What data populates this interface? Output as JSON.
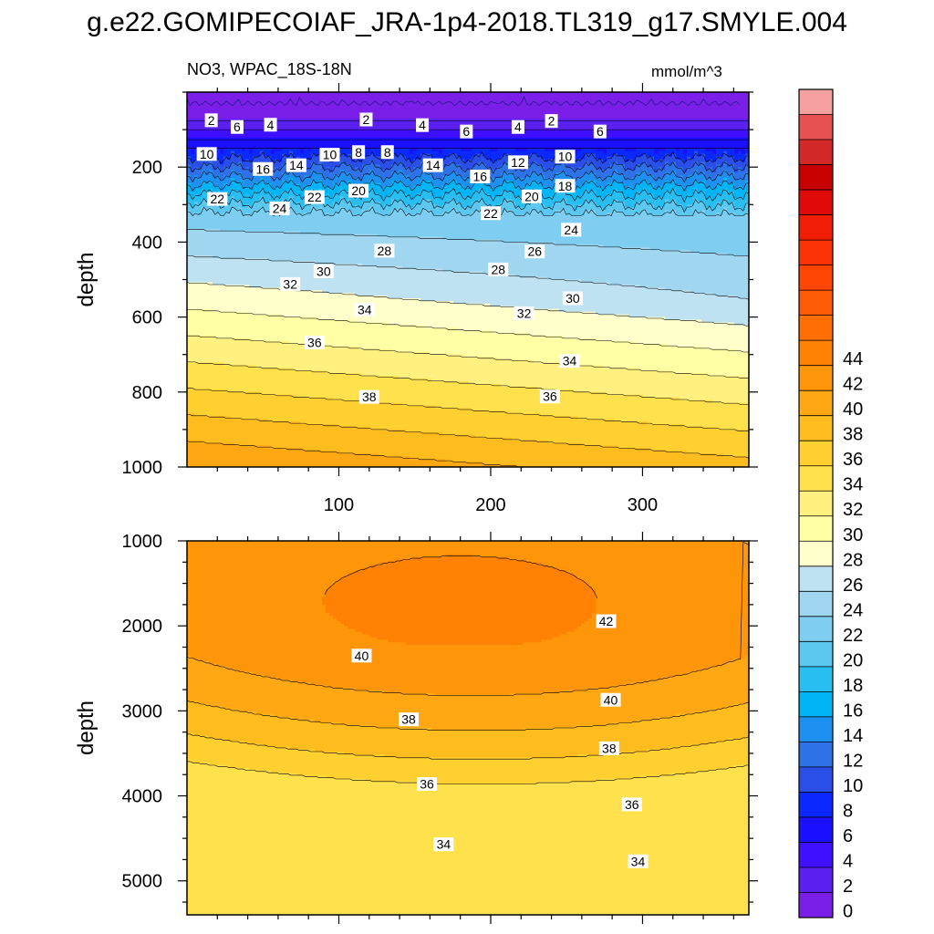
{
  "title": "g.e22.GOMIPECOIAF_JRA-1p4-2018.TL319_g17.SMYLE.004",
  "subtitle_left": "NO3, WPAC_18S-18N",
  "subtitle_right": "mmol/m^3",
  "colors": {
    "palette": [
      "#7a1fe8",
      "#5a20f0",
      "#3f10ff",
      "#1a0fff",
      "#0a28ff",
      "#2a4ee8",
      "#2f72e8",
      "#1e90f0",
      "#00b4f5",
      "#28bef2",
      "#5cc8f0",
      "#7fcef2",
      "#a0d6f0",
      "#bfe2f2",
      "#ffffcc",
      "#ffffa6",
      "#fff080",
      "#ffe14d",
      "#ffd030",
      "#ffbc1f",
      "#ffa814",
      "#ff960a",
      "#ff8205",
      "#ff6e05",
      "#ff5a05",
      "#ff4605",
      "#fa3205",
      "#f01e05",
      "#e00a0a",
      "#c80000",
      "#d22828",
      "#e65050",
      "#f5a0a0"
    ],
    "frame": "#000000"
  },
  "chart_data": [
    {
      "type": "contour",
      "panel": "upper",
      "xlabel": "",
      "ylabel": "depth",
      "xlim": [
        0,
        370
      ],
      "ylim": [
        1000,
        0
      ],
      "xticks": [
        100,
        200,
        300
      ],
      "yticks": [
        200,
        400,
        600,
        800,
        1000
      ],
      "contour_interval": 2,
      "contour_labels": [
        {
          "v": "2",
          "x": 16,
          "y": 75
        },
        {
          "v": "6",
          "x": 33,
          "y": 93
        },
        {
          "v": "4",
          "x": 55,
          "y": 87
        },
        {
          "v": "2",
          "x": 118,
          "y": 73
        },
        {
          "v": "4",
          "x": 155,
          "y": 88
        },
        {
          "v": "6",
          "x": 184,
          "y": 105
        },
        {
          "v": "4",
          "x": 218,
          "y": 93
        },
        {
          "v": "2",
          "x": 240,
          "y": 77
        },
        {
          "v": "6",
          "x": 272,
          "y": 105
        },
        {
          "v": "10",
          "x": 13,
          "y": 165
        },
        {
          "v": "16",
          "x": 50,
          "y": 205
        },
        {
          "v": "14",
          "x": 72,
          "y": 195
        },
        {
          "v": "10",
          "x": 94,
          "y": 167
        },
        {
          "v": "8",
          "x": 113,
          "y": 160
        },
        {
          "v": "8",
          "x": 132,
          "y": 160
        },
        {
          "v": "14",
          "x": 162,
          "y": 195
        },
        {
          "v": "16",
          "x": 193,
          "y": 225
        },
        {
          "v": "12",
          "x": 218,
          "y": 187
        },
        {
          "v": "10",
          "x": 249,
          "y": 172
        },
        {
          "v": "22",
          "x": 20,
          "y": 285
        },
        {
          "v": "24",
          "x": 61,
          "y": 310
        },
        {
          "v": "22",
          "x": 84,
          "y": 280
        },
        {
          "v": "20",
          "x": 113,
          "y": 263
        },
        {
          "v": "22",
          "x": 200,
          "y": 323
        },
        {
          "v": "20",
          "x": 227,
          "y": 278
        },
        {
          "v": "18",
          "x": 249,
          "y": 250
        },
        {
          "v": "24",
          "x": 253,
          "y": 367
        },
        {
          "v": "28",
          "x": 130,
          "y": 423
        },
        {
          "v": "26",
          "x": 229,
          "y": 425
        },
        {
          "v": "28",
          "x": 205,
          "y": 473
        },
        {
          "v": "30",
          "x": 90,
          "y": 478
        },
        {
          "v": "32",
          "x": 68,
          "y": 512
        },
        {
          "v": "30",
          "x": 254,
          "y": 550
        },
        {
          "v": "34",
          "x": 117,
          "y": 580
        },
        {
          "v": "32",
          "x": 222,
          "y": 590
        },
        {
          "v": "36",
          "x": 84,
          "y": 668
        },
        {
          "v": "34",
          "x": 252,
          "y": 717
        },
        {
          "v": "38",
          "x": 120,
          "y": 813
        },
        {
          "v": "36",
          "x": 239,
          "y": 812
        }
      ]
    },
    {
      "type": "contour",
      "panel": "lower",
      "xlabel": "",
      "ylabel": "depth",
      "xlim": [
        0,
        370
      ],
      "ylim": [
        5400,
        1000
      ],
      "xticks": [
        100,
        200,
        300
      ],
      "yticks": [
        1000,
        2000,
        3000,
        4000,
        5000
      ],
      "contour_interval": 2,
      "contour_labels": [
        {
          "v": "42",
          "x": 276,
          "y": 1945
        },
        {
          "v": "40",
          "x": 115,
          "y": 2350
        },
        {
          "v": "40",
          "x": 279,
          "y": 2870
        },
        {
          "v": "38",
          "x": 146,
          "y": 3100
        },
        {
          "v": "38",
          "x": 278,
          "y": 3440
        },
        {
          "v": "36",
          "x": 158,
          "y": 3860
        },
        {
          "v": "36",
          "x": 293,
          "y": 4100
        },
        {
          "v": "34",
          "x": 169,
          "y": 4570
        },
        {
          "v": "34",
          "x": 297,
          "y": 4770
        }
      ]
    },
    {
      "type": "colorbar",
      "levels": [
        0,
        2,
        4,
        6,
        8,
        10,
        12,
        14,
        16,
        18,
        20,
        22,
        24,
        26,
        28,
        30,
        32,
        34,
        36,
        38,
        40,
        42,
        44
      ],
      "labels": [
        "0",
        "2",
        "4",
        "6",
        "8",
        "10",
        "12",
        "14",
        "16",
        "18",
        "20",
        "22",
        "24",
        "26",
        "28",
        "30",
        "32",
        "34",
        "36",
        "38",
        "40",
        "42",
        "44"
      ],
      "units": "mmol/m^3"
    }
  ]
}
